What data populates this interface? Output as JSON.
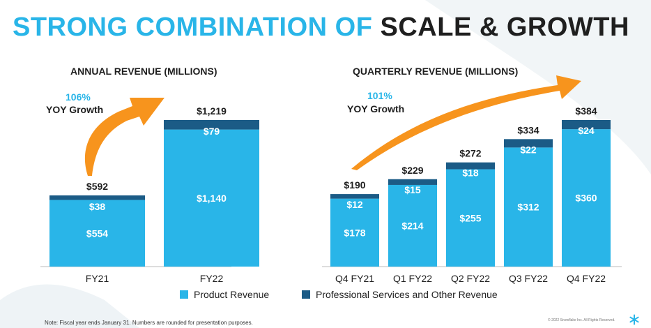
{
  "title": {
    "part1": "STRONG COMBINATION OF",
    "part2": "SCALE & GROWTH"
  },
  "colors": {
    "product": "#29b5e8",
    "services": "#1b5b86",
    "arrow": "#f7941d",
    "accent": "#29b5e8"
  },
  "chart_data": [
    {
      "type": "bar",
      "stacked": true,
      "title": "ANNUAL REVENUE (MILLIONS)",
      "categories": [
        "FY21",
        "FY22"
      ],
      "series": [
        {
          "name": "Product Revenue",
          "values": [
            554,
            1140
          ],
          "labels": [
            "$554",
            "$1,140"
          ]
        },
        {
          "name": "Professional Services and Other Revenue",
          "values": [
            38,
            79
          ],
          "labels": [
            "$38",
            "$79"
          ]
        }
      ],
      "totals": [
        592,
        1219
      ],
      "total_labels": [
        "$592",
        "$1,219"
      ],
      "annotation": {
        "pct": "106%",
        "label": "YOY Growth"
      }
    },
    {
      "type": "bar",
      "stacked": true,
      "title": "QUARTERLY REVENUE (MILLIONS)",
      "categories": [
        "Q4 FY21",
        "Q1 FY22",
        "Q2 FY22",
        "Q3 FY22",
        "Q4 FY22"
      ],
      "series": [
        {
          "name": "Product Revenue",
          "values": [
            178,
            214,
            255,
            312,
            360
          ],
          "labels": [
            "$178",
            "$214",
            "$255",
            "$312",
            "$360"
          ]
        },
        {
          "name": "Professional Services and Other Revenue",
          "values": [
            12,
            15,
            18,
            22,
            24
          ],
          "labels": [
            "$12",
            "$15",
            "$18",
            "$22",
            "$24"
          ]
        }
      ],
      "totals": [
        190,
        229,
        272,
        334,
        384
      ],
      "total_labels": [
        "$190",
        "$229",
        "$272",
        "$334",
        "$384"
      ],
      "annotation": {
        "pct": "101%",
        "label": "YOY Growth"
      }
    }
  ],
  "legend": {
    "product": "Product Revenue",
    "services": "Professional Services and Other Revenue"
  },
  "footer": {
    "note": "Note: Fiscal year ends January 31. Numbers are rounded for presentation purposes.",
    "copyright": "© 2022 Snowflake Inc. All Rights Reserved."
  }
}
